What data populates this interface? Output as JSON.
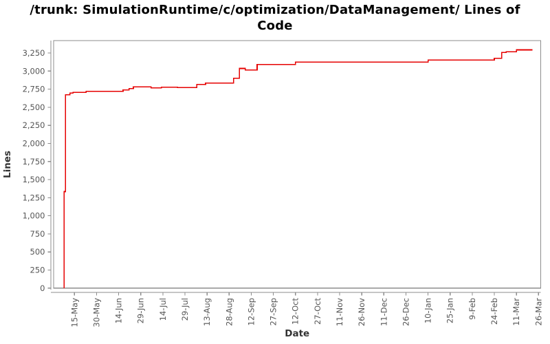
{
  "page": {
    "title_line1": "/trunk: SimulationRuntime/c/optimization/DataManagement/ Lines of",
    "title_line2": "Code"
  },
  "chart_data": {
    "type": "line",
    "step": "after",
    "title": "/trunk: SimulationRuntime/c/optimization/DataManagement/ Lines of Code",
    "xlabel": "Date",
    "ylabel": "Lines",
    "legend": "none",
    "grid": "off",
    "line_color": "#e60000",
    "axis_color": "#8c8c8c",
    "tick_label_color": "#555555",
    "axis_label_color": "#333333",
    "x_tick_labels": [
      "15-May",
      "30-May",
      "14-Jun",
      "29-Jun",
      "14-Jul",
      "29-Jul",
      "13-Aug",
      "28-Aug",
      "12-Sep",
      "27-Sep",
      "12-Oct",
      "27-Oct",
      "11-Nov",
      "26-Nov",
      "11-Dec",
      "26-Dec",
      "10-Jan",
      "25-Jan",
      "9-Feb",
      "24-Feb",
      "11-Mar",
      "26-Mar"
    ],
    "y_ticks": [
      0,
      250,
      500,
      750,
      1000,
      1250,
      1500,
      1750,
      2000,
      2250,
      2500,
      2750,
      3000,
      3250
    ],
    "y_tick_labels": [
      "0",
      "250",
      "500",
      "750",
      "1,000",
      "1,250",
      "1,500",
      "1,750",
      "2,000",
      "2,250",
      "2,500",
      "2,750",
      "3,000",
      "3,250"
    ],
    "ylim": [
      0,
      3417
    ],
    "series": [
      {
        "name": "Lines of Code",
        "points": [
          [
            "8-May",
            1334
          ],
          [
            "9-May",
            2673
          ],
          [
            "12-May",
            2698
          ],
          [
            "14-May",
            2706
          ],
          [
            "23-May",
            2722
          ],
          [
            "17-Jun",
            2741
          ],
          [
            "21-Jun",
            2760
          ],
          [
            "24-Jun",
            2782
          ],
          [
            "6-Jul",
            2766
          ],
          [
            "13-Jul",
            2779
          ],
          [
            "24-Jul",
            2772
          ],
          [
            "6-Aug",
            2817
          ],
          [
            "12-Aug",
            2836
          ],
          [
            "31-Aug",
            2900
          ],
          [
            "4-Sep",
            3036
          ],
          [
            "8-Sep",
            3014
          ],
          [
            "16-Sep",
            3091
          ],
          [
            "12-Oct",
            3123
          ],
          [
            "10-Jan",
            3152
          ],
          [
            "24-Feb",
            3175
          ],
          [
            "1-Mar",
            3256
          ],
          [
            "4-Mar",
            3267
          ],
          [
            "11-Mar",
            3293
          ],
          [
            "22-Mar",
            3293
          ]
        ]
      }
    ]
  }
}
